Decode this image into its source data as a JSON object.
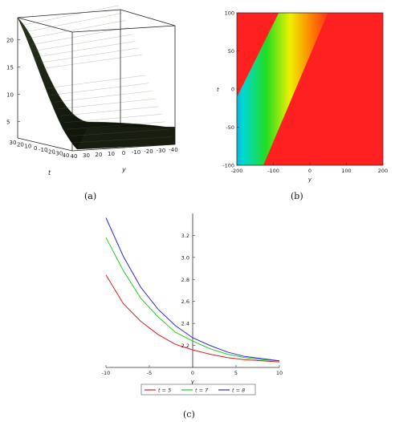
{
  "captions": {
    "a": "(a)",
    "b": "(b)",
    "c": "(c)"
  },
  "chart_data": [
    {
      "id": "a",
      "type": "surface3d",
      "zticks": [
        "5",
        "10",
        "15",
        "20"
      ],
      "tticks": [
        "30",
        "20",
        "10",
        "0",
        "-10",
        "-20",
        "-30",
        "40"
      ],
      "tlabel": "t",
      "yticks": [
        "40",
        "30",
        "20",
        "10",
        "0",
        "-10",
        "-20",
        "-30",
        "-40"
      ],
      "ylabel": "y",
      "zrange": [
        2,
        24
      ]
    },
    {
      "id": "b",
      "type": "heatmap",
      "xlabel": "y",
      "ylabel": "t",
      "xticks": [
        "-200",
        "-100",
        "0",
        "100",
        "200"
      ],
      "yticks": [
        "100",
        "50",
        "0",
        "-50",
        "-100"
      ],
      "xlim": [
        -200,
        200
      ],
      "ylim": [
        -100,
        100
      ]
    },
    {
      "id": "c",
      "type": "line",
      "xlabel": "y",
      "xlim": [
        -10,
        10
      ],
      "ylim": [
        2.0,
        3.4
      ],
      "xticks": [
        "-10",
        "-5",
        "0",
        "5",
        "10"
      ],
      "yticks": [
        "2.2",
        "2.4",
        "2.6",
        "2.8",
        "3.0",
        "3.2"
      ],
      "x": [
        -10,
        -8,
        -6,
        -4,
        -2,
        0,
        2,
        4,
        6,
        8,
        10
      ],
      "series": [
        {
          "name": "t = 5",
          "color": "#d42020",
          "values": [
            2.84,
            2.58,
            2.42,
            2.3,
            2.21,
            2.16,
            2.12,
            2.09,
            2.07,
            2.06,
            2.05
          ]
        },
        {
          "name": "t = 7",
          "color": "#22cc22",
          "values": [
            3.18,
            2.88,
            2.63,
            2.46,
            2.32,
            2.24,
            2.17,
            2.12,
            2.09,
            2.07,
            2.06
          ]
        },
        {
          "name": "t = 8",
          "color": "#2a2ad8",
          "values": [
            3.36,
            3.01,
            2.73,
            2.53,
            2.38,
            2.27,
            2.2,
            2.14,
            2.1,
            2.08,
            2.06
          ]
        }
      ]
    }
  ]
}
